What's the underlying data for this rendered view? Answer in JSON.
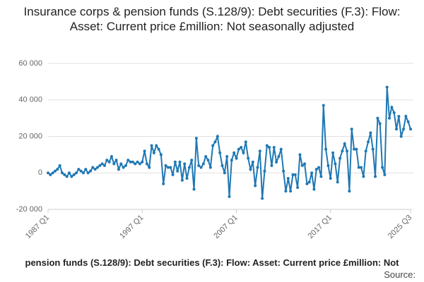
{
  "chart_data": {
    "type": "line",
    "title": "Insurance corps & pension funds (S.128/9): Debt securities (F.3): Flow: Asset: Current price £million: Not seasonally adjusted",
    "footer": "pension funds (S.128/9): Debt securities (F.3): Flow: Asset: Current price £million: Not",
    "source": "Source:",
    "categories": [
      "1987 Q1",
      null,
      null,
      null,
      null,
      null,
      null,
      null,
      null,
      null,
      null,
      null,
      null,
      null,
      null,
      null,
      null,
      null,
      null,
      null,
      null,
      null,
      null,
      null,
      null,
      null,
      null,
      null,
      null,
      null,
      null,
      null,
      null,
      null,
      null,
      null,
      null,
      null,
      null,
      null,
      "1997 Q1",
      null,
      null,
      null,
      null,
      null,
      null,
      null,
      null,
      null,
      null,
      null,
      null,
      null,
      null,
      null,
      null,
      null,
      null,
      null,
      null,
      null,
      null,
      null,
      null,
      null,
      null,
      null,
      null,
      null,
      null,
      null,
      null,
      null,
      null,
      null,
      null,
      null,
      null,
      null,
      "2007 Q1",
      null,
      null,
      null,
      null,
      null,
      null,
      null,
      null,
      null,
      null,
      null,
      null,
      null,
      null,
      null,
      null,
      null,
      null,
      null,
      null,
      null,
      null,
      null,
      null,
      null,
      null,
      null,
      null,
      null,
      null,
      null,
      null,
      null,
      null,
      null,
      null,
      null,
      null,
      null,
      "2017 Q1",
      null,
      null,
      null,
      null,
      null,
      null,
      null,
      null,
      null,
      null,
      null,
      null,
      null,
      null,
      null,
      null,
      null,
      null,
      null,
      null,
      null,
      null,
      null,
      null,
      null,
      null,
      null,
      null,
      null,
      null,
      null,
      null,
      null,
      "2025 Q3"
    ],
    "series": [
      {
        "color": "#1f78b4",
        "values": [
          0,
          -1000,
          0,
          1000,
          2000,
          4000,
          0,
          -1000,
          -2000,
          0,
          -2000,
          -1000,
          0,
          2000,
          1000,
          0,
          2000,
          0,
          1000,
          3000,
          2000,
          3000,
          4000,
          5000,
          4000,
          7000,
          6000,
          9000,
          5000,
          7000,
          2000,
          5000,
          3000,
          4000,
          7000,
          6000,
          6000,
          5000,
          6000,
          5000,
          6000,
          12000,
          5000,
          3000,
          15000,
          11000,
          15000,
          13000,
          10000,
          -6000,
          4000,
          3000,
          3000,
          -1000,
          6000,
          1000,
          6000,
          -4000,
          5000,
          -3000,
          3000,
          7000,
          -9000,
          19000,
          4000,
          3000,
          5000,
          9000,
          7000,
          3000,
          15000,
          17000,
          20000,
          11000,
          4000,
          0,
          9000,
          -13000,
          7000,
          11000,
          8000,
          13000,
          14000,
          11000,
          17000,
          8000,
          2000,
          6000,
          -7000,
          3000,
          12000,
          -14000,
          1000,
          15000,
          14000,
          4000,
          14000,
          6000,
          9000,
          13000,
          1000,
          -10000,
          -3000,
          -10000,
          -1000,
          -1000,
          -8000,
          10000,
          4000,
          5000,
          -6000,
          -5000,
          0,
          -9000,
          2000,
          3000,
          -2000,
          37000,
          13000,
          4000,
          -3000,
          11000,
          5000,
          -5000,
          8000,
          12000,
          16000,
          12000,
          -10000,
          24000,
          13000,
          13000,
          3000,
          3000,
          -2000,
          12000,
          17000,
          22000,
          13000,
          -2000,
          30000,
          27000,
          3000,
          -1000,
          47000,
          30000,
          36000,
          33000,
          24000,
          31000,
          20000,
          24000,
          31000,
          28000,
          24000
        ]
      }
    ],
    "ylim": [
      -20000,
      60000
    ],
    "yticks": [
      {
        "value": -20000,
        "label": "-20 000"
      },
      0,
      {
        "value": 20000,
        "label": "20 000"
      },
      {
        "value": 40000,
        "label": "40 000"
      },
      {
        "value": 60000,
        "label": "60 000"
      }
    ],
    "grid": true
  }
}
